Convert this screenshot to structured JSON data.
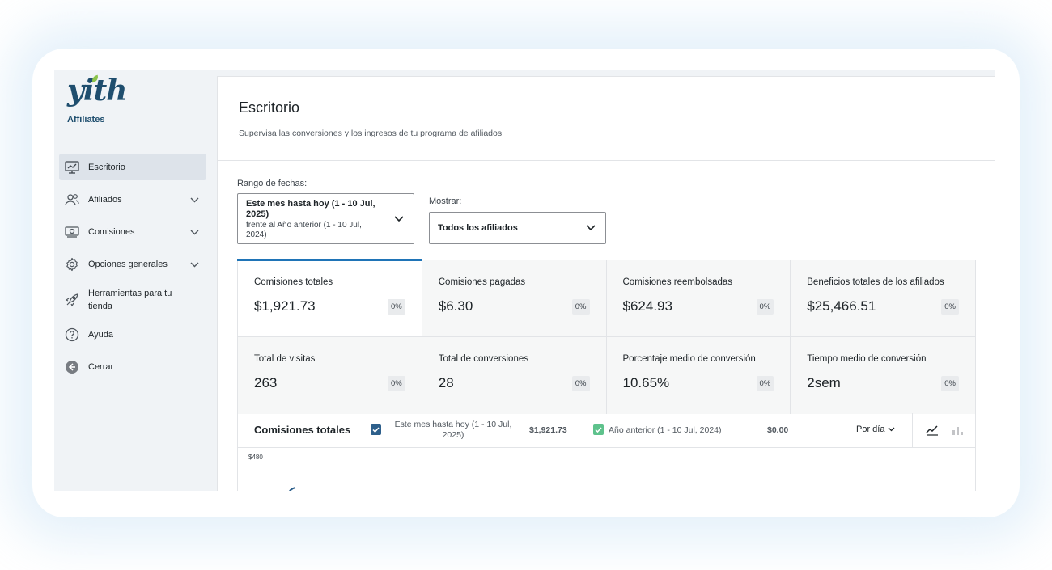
{
  "brand": {
    "logo_text": "yith",
    "product": "Affiliates"
  },
  "sidebar": {
    "items": [
      {
        "label": "Escritorio",
        "icon": "dashboard-chart-icon",
        "active": true,
        "expandable": false
      },
      {
        "label": "Afiliados",
        "icon": "users-icon",
        "active": false,
        "expandable": true
      },
      {
        "label": "Comisiones",
        "icon": "money-icon",
        "active": false,
        "expandable": true
      },
      {
        "label": "Opciones generales",
        "icon": "gear-icon",
        "active": false,
        "expandable": true
      },
      {
        "label": "Herramientas para tu tienda",
        "icon": "rocket-icon",
        "active": false,
        "expandable": false
      },
      {
        "label": "Ayuda",
        "icon": "help-icon",
        "active": false,
        "expandable": false
      },
      {
        "label": "Cerrar",
        "icon": "back-arrow-icon",
        "active": false,
        "expandable": false
      }
    ]
  },
  "header": {
    "title": "Escritorio",
    "subtitle": "Supervisa las conversiones y los ingresos de tu programa de afiliados"
  },
  "filters": {
    "date_label": "Rango de fechas:",
    "date_value": "Este mes hasta hoy (1 - 10 Jul, 2025)",
    "date_compare": "frente al Año anterior (1 - 10 Jul, 2024)",
    "show_label": "Mostrar:",
    "show_value": "Todos los afiliados"
  },
  "stats": [
    {
      "label": "Comisiones totales",
      "value": "$1,921.73",
      "delta": "0%"
    },
    {
      "label": "Comisiones pagadas",
      "value": "$6.30",
      "delta": "0%"
    },
    {
      "label": "Comisiones reembolsadas",
      "value": "$624.93",
      "delta": "0%"
    },
    {
      "label": "Beneficios totales de los afiliados",
      "value": "$25,466.51",
      "delta": "0%"
    },
    {
      "label": "Total de visitas",
      "value": "263",
      "delta": "0%"
    },
    {
      "label": "Total de conversiones",
      "value": "28",
      "delta": "0%"
    },
    {
      "label": "Porcentaje medio de conversión",
      "value": "10.65%",
      "delta": "0%"
    },
    {
      "label": "Tiempo medio de conversión",
      "value": "2sem",
      "delta": "0%"
    }
  ],
  "chart": {
    "title": "Comisiones totales",
    "current_label": "Este mes hasta hoy (1 - 10 Jul, 2025)",
    "current_value": "$1,921.73",
    "current_color": "#2d5f8b",
    "previous_label": "Año anterior (1 - 10 Jul, 2024)",
    "previous_value": "$0.00",
    "previous_color": "#5ec28c",
    "interval": "Por día",
    "y_top_tick": "$480"
  }
}
